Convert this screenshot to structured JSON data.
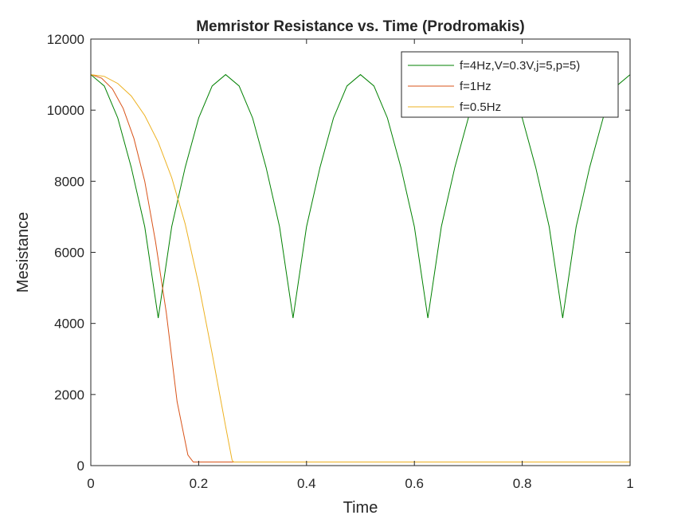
{
  "chart_data": {
    "type": "line",
    "title": "Memristor Resistance vs. Time (Prodromakis)",
    "xlabel": "Time",
    "ylabel": "Mesistance",
    "xlim": [
      0,
      1
    ],
    "ylim": [
      0,
      12000
    ],
    "xticks": [
      "0",
      "0.2",
      "0.4",
      "0.6",
      "0.8",
      "1"
    ],
    "yticks": [
      "0",
      "2000",
      "4000",
      "6000",
      "8000",
      "10000",
      "12000"
    ],
    "grid": false,
    "legend_position": "top-right",
    "series": [
      {
        "name": "f=4Hz,V=0.3V,j=5,p=5)",
        "color": "#008000",
        "x": [
          0,
          0.025,
          0.05,
          0.075,
          0.1,
          0.125,
          0.15,
          0.175,
          0.2,
          0.225,
          0.25,
          0.275,
          0.3,
          0.325,
          0.35,
          0.375,
          0.4,
          0.425,
          0.45,
          0.475,
          0.5,
          0.525,
          0.55,
          0.575,
          0.6,
          0.625,
          0.65,
          0.675,
          0.7,
          0.725,
          0.75,
          0.775,
          0.8,
          0.825,
          0.85,
          0.875,
          0.9,
          0.925,
          0.95,
          0.975,
          1
        ],
        "y": [
          11000,
          10680,
          9780,
          8390,
          6720,
          4150,
          6720,
          8390,
          9780,
          10680,
          11000,
          10680,
          9780,
          8390,
          6720,
          4150,
          6720,
          8390,
          9780,
          10680,
          11000,
          10680,
          9780,
          8390,
          6720,
          4150,
          6720,
          8390,
          9780,
          10680,
          11000,
          10680,
          9780,
          8390,
          6720,
          4150,
          6720,
          8390,
          9780,
          10680,
          11000
        ]
      },
      {
        "name": "f=1Hz",
        "color": "#D95319",
        "x": [
          0,
          0.02,
          0.04,
          0.06,
          0.08,
          0.1,
          0.12,
          0.14,
          0.16,
          0.18,
          0.19,
          0.193,
          0.3,
          0.5,
          0.7,
          1
        ],
        "y": [
          11000,
          10900,
          10600,
          10050,
          9200,
          8000,
          6300,
          4300,
          1800,
          300,
          100,
          100,
          100,
          100,
          100,
          100
        ]
      },
      {
        "name": "f=0.5Hz",
        "color": "#EDB120",
        "x": [
          0,
          0.025,
          0.05,
          0.075,
          0.1,
          0.125,
          0.15,
          0.175,
          0.2,
          0.225,
          0.25,
          0.262,
          0.265,
          0.5,
          1
        ],
        "y": [
          11000,
          10950,
          10750,
          10400,
          9850,
          9100,
          8100,
          6800,
          5100,
          3150,
          1100,
          150,
          100,
          100,
          100
        ]
      }
    ]
  }
}
